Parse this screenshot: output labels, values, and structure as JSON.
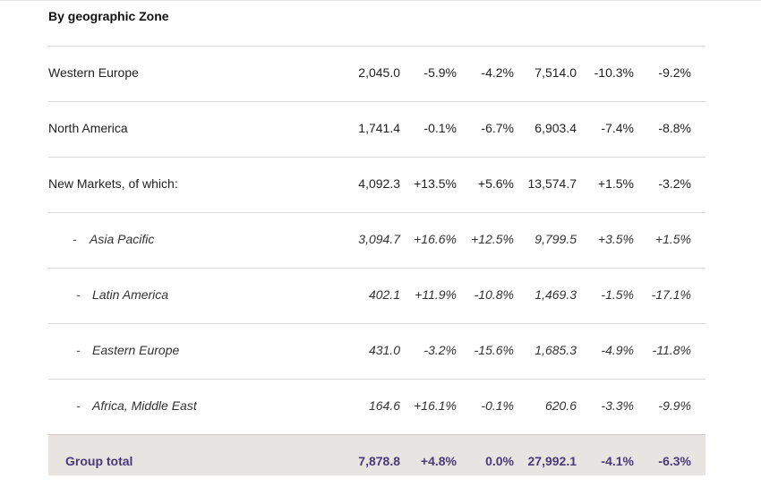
{
  "section_title": "By geographic Zone",
  "rows": [
    {
      "label": "Western Europe",
      "sub": false,
      "values": [
        "2,045.0",
        "-5.9%",
        "-4.2%",
        "7,514.0",
        "-10.3%",
        "-9.2%"
      ]
    },
    {
      "label": "North America",
      "sub": false,
      "values": [
        "1,741.4",
        "-0.1%",
        "-6.7%",
        "6,903.4",
        "-7.4%",
        "-8.8%"
      ]
    },
    {
      "label": "New Markets, of which:",
      "sub": false,
      "values": [
        "4,092.3",
        "+13.5%",
        "+5.6%",
        "13,574.7",
        "+1.5%",
        "-3.2%"
      ]
    },
    {
      "label": "Asia Pacific",
      "sub": true,
      "dash": "-",
      "values": [
        "3,094.7",
        "+16.6%",
        "+12.5%",
        "9,799.5",
        "+3.5%",
        "+1.5%"
      ]
    },
    {
      "label": "Latin America",
      "sub": true,
      "dash": "-",
      "values": [
        "402.1",
        "+11.9%",
        "-10.8%",
        "1,469.3",
        "-1.5%",
        "-17.1%"
      ]
    },
    {
      "label": "Eastern Europe",
      "sub": true,
      "dash": "-",
      "values": [
        "431.0",
        "-3.2%",
        "-15.6%",
        "1,685.3",
        "-4.9%",
        "-11.8%"
      ]
    },
    {
      "label": "Africa, Middle East",
      "sub": true,
      "dash": "-",
      "values": [
        "164.6",
        "+16.1%",
        "-0.1%",
        "620.6",
        "-3.3%",
        "-9.9%"
      ]
    }
  ],
  "total": {
    "label": "Group total",
    "values": [
      "7,878.8",
      "+4.8%",
      "0.0%",
      "27,992.1",
      "-4.1%",
      "-6.3%"
    ]
  },
  "colors": {
    "total_background": "#e8e4e1",
    "total_text": "#4a3a7a",
    "rule": "#d9d9d9"
  }
}
